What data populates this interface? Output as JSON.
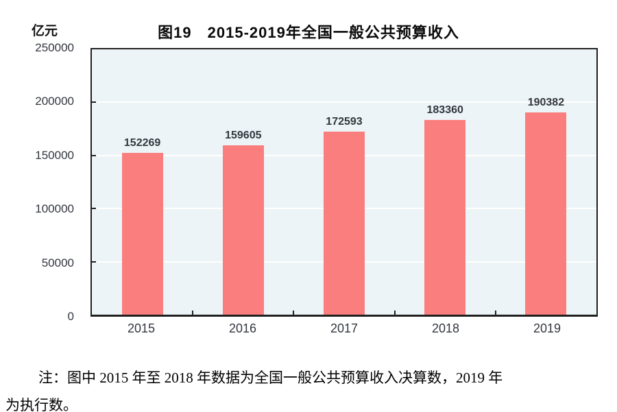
{
  "chart_data": {
    "type": "bar",
    "title": "图19　2015-2019年全国一般公共预算收入",
    "unit_label": "亿元",
    "categories": [
      "2015",
      "2016",
      "2017",
      "2018",
      "2019"
    ],
    "values": [
      152269,
      159605,
      172593,
      183360,
      190382
    ],
    "ylim": [
      0,
      250000
    ],
    "yticks": [
      0,
      50000,
      100000,
      150000,
      200000,
      250000
    ],
    "xlabel": "",
    "ylabel": "亿元",
    "grid": true,
    "legend": "none",
    "bar_color": "#fa7e7e",
    "plot_bg": "#edf4f7",
    "grid_color": "#ffffff",
    "axis_color": "#1f1f1f",
    "label_color": "#32363e"
  },
  "note": {
    "line1": "注：图中 2015 年至 2018 年数据为全国一般公共预算收入决算数，2019 年",
    "line2": "为执行数。"
  }
}
